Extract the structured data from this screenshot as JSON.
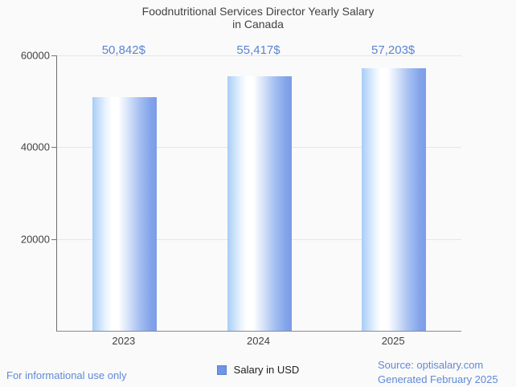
{
  "chart_data": {
    "type": "bar",
    "title": "Foodnutritional Services Director Yearly Salary in Canada",
    "title_lines": [
      "Foodnutritional Services Director Yearly Salary",
      "in Canada"
    ],
    "categories": [
      "2023",
      "2024",
      "2025"
    ],
    "series": [
      {
        "name": "Salary in USD",
        "values": [
          50842,
          55417,
          57203
        ],
        "labels": [
          "50,842$",
          "55,417$",
          "57,203$"
        ]
      }
    ],
    "ylim": [
      0,
      60000
    ],
    "yticks": [
      60000,
      40000,
      20000
    ],
    "ytick_labels": [
      "60000",
      "40000",
      "20000"
    ],
    "grid": true,
    "legend_position": "bottom"
  },
  "legend": {
    "label": "Salary in USD"
  },
  "footer": {
    "disclaimer": "For informational use only",
    "source": "Source: optisalary.com",
    "generated": "Generated February 2025"
  },
  "colors": {
    "annotation_blue": "#5b84d4",
    "footer_blue": "#6189d6",
    "bar_light": "#a8cdf7",
    "bar_mid": "#ffffff",
    "bar_dark": "#7b9ce7",
    "gridline": "#e6e6e6",
    "axis": "#757575",
    "text": "#424242",
    "background": "#fafafa"
  }
}
